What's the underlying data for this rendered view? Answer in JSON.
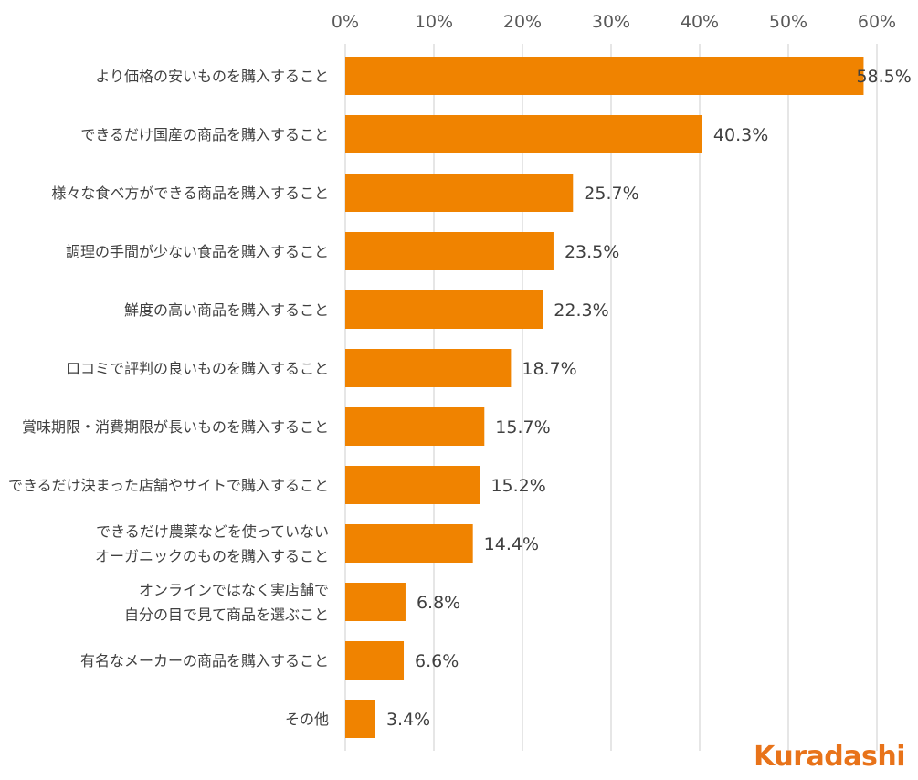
{
  "chart_data": {
    "type": "bar",
    "orientation": "horizontal",
    "categories": [
      [
        "より価格の安いものを購入すること"
      ],
      [
        "できるだけ国産の商品を購入すること"
      ],
      [
        "様々な食べ方ができる商品を購入すること"
      ],
      [
        "調理の手間が少ない食品を購入すること"
      ],
      [
        "鮮度の高い商品を購入すること"
      ],
      [
        "口コミで評判の良いものを購入すること"
      ],
      [
        "賞味期限・消費期限が長いものを購入すること"
      ],
      [
        "できるだけ決まった店舗やサイトで購入すること"
      ],
      [
        "できるだけ農薬などを使っていない",
        "オーガニックのものを購入すること"
      ],
      [
        "オンラインではなく実店舗で",
        "自分の目で見て商品を選ぶこと"
      ],
      [
        "有名なメーカーの商品を購入すること"
      ],
      [
        "その他"
      ]
    ],
    "values": [
      58.5,
      40.3,
      25.7,
      23.5,
      22.3,
      18.7,
      15.7,
      15.2,
      14.4,
      6.8,
      6.6,
      3.4
    ],
    "data_labels": [
      "58.5%",
      "40.3%",
      "25.7%",
      "23.5%",
      "22.3%",
      "18.7%",
      "15.7%",
      "15.2%",
      "14.4%",
      "6.8%",
      "6.6%",
      "3.4%"
    ],
    "x_ticks": [
      "0%",
      "10%",
      "20%",
      "30%",
      "40%",
      "50%",
      "60%"
    ],
    "xlim": [
      0,
      60
    ],
    "grid": true,
    "x_axis_position": "top",
    "bar_color": "#f08300"
  },
  "logo": {
    "text": "Kuradashi",
    "color": "#e8731a"
  }
}
